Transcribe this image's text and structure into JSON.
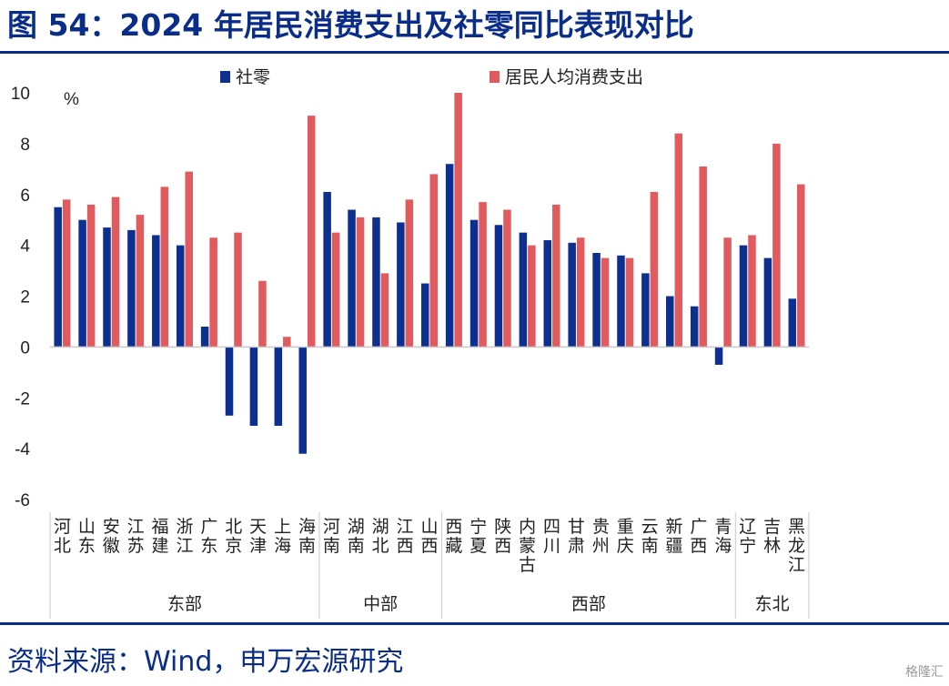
{
  "header": {
    "title": "图 54：2024 年居民消费支出及社零同比表现对比"
  },
  "footer": {
    "source": "资料来源：Wind，申万宏源研究",
    "watermark": "格隆汇"
  },
  "colors": {
    "brand": "#0b2d8a",
    "series_retail": "#0d2f8f",
    "series_consumption": "#e05a5e"
  },
  "chart_data": {
    "type": "bar",
    "ylabel": "%",
    "ylim": [
      -6,
      10
    ],
    "yticks": [
      -6,
      -4,
      -2,
      0,
      2,
      4,
      6,
      8,
      10
    ],
    "grid": false,
    "legend_position": "top",
    "categories": [
      "河北",
      "山东",
      "安徽",
      "江苏",
      "福建",
      "浙江",
      "广东",
      "北京",
      "天津",
      "上海",
      "海南",
      "河南",
      "湖南",
      "湖北",
      "江西",
      "山西",
      "西藏",
      "宁夏",
      "陕西",
      "内蒙古",
      "四川",
      "甘肃",
      "贵州",
      "重庆",
      "云南",
      "新疆",
      "广西",
      "青海",
      "辽宁",
      "吉林",
      "黑龙江"
    ],
    "series": [
      {
        "name": "社零",
        "values": [
          5.5,
          5.0,
          4.7,
          4.6,
          4.4,
          4.0,
          0.8,
          -2.7,
          -3.1,
          -3.1,
          -4.2,
          6.1,
          5.4,
          5.1,
          4.9,
          2.5,
          7.2,
          5.0,
          4.8,
          4.5,
          4.2,
          4.1,
          3.7,
          3.6,
          2.9,
          2.0,
          1.6,
          -0.7,
          4.0,
          3.5,
          1.9
        ]
      },
      {
        "name": "居民人均消费支出",
        "values": [
          5.8,
          5.6,
          5.9,
          5.2,
          6.3,
          6.9,
          4.3,
          4.5,
          2.6,
          0.4,
          9.1,
          4.5,
          5.1,
          2.9,
          5.8,
          6.8,
          10.0,
          5.7,
          5.4,
          4.0,
          5.6,
          4.3,
          3.5,
          3.5,
          6.1,
          8.4,
          7.1,
          4.3,
          4.4,
          8.0,
          6.4
        ]
      }
    ],
    "groups": [
      {
        "label": "东部",
        "start": 0,
        "end": 10
      },
      {
        "label": "中部",
        "start": 11,
        "end": 15
      },
      {
        "label": "西部",
        "start": 16,
        "end": 27
      },
      {
        "label": "东北",
        "start": 28,
        "end": 30
      }
    ]
  }
}
